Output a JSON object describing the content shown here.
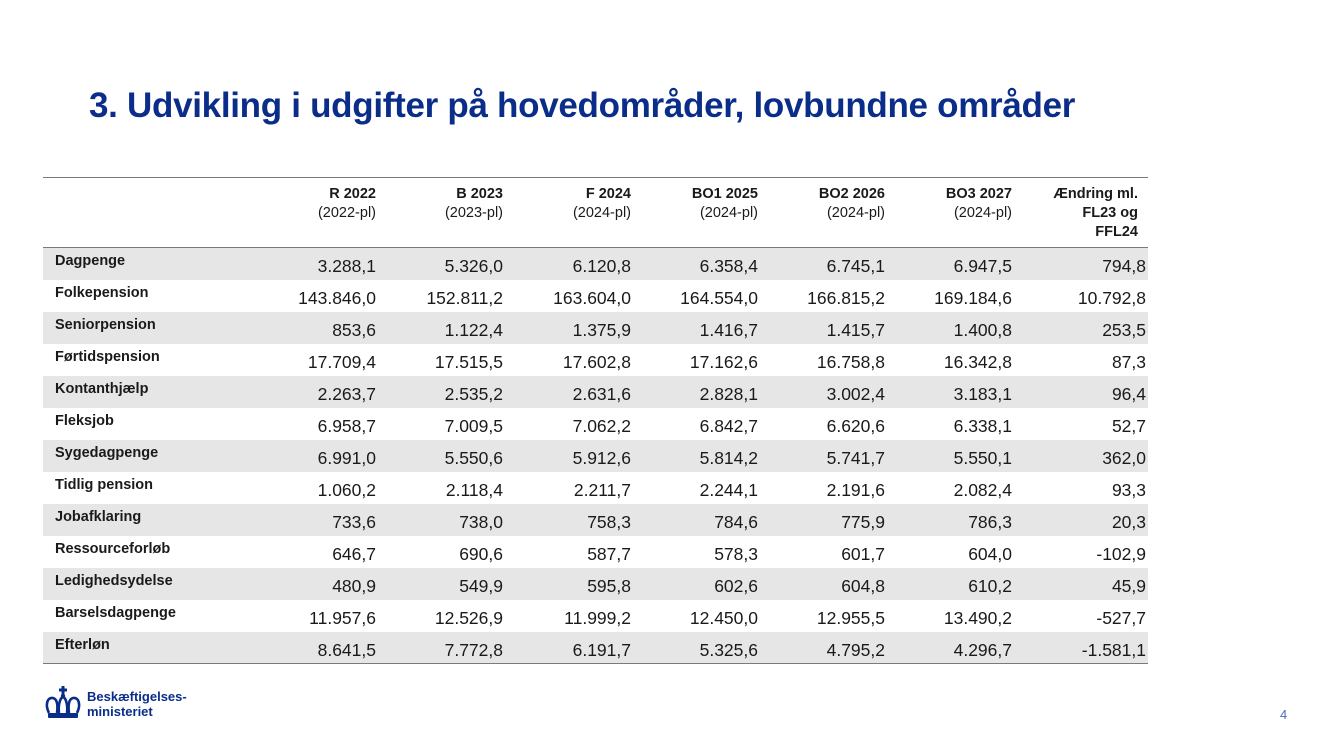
{
  "title": "3. Udvikling i udgifter på hovedområder, lovbundne områder",
  "table": {
    "columns": [
      {
        "line1": "R 2022",
        "line2": "(2022-pl)"
      },
      {
        "line1": "B 2023",
        "line2": "(2023-pl)"
      },
      {
        "line1": "F 2024",
        "line2": "(2024-pl)"
      },
      {
        "line1": "BO1 2025",
        "line2": "(2024-pl)"
      },
      {
        "line1": "BO2 2026",
        "line2": "(2024-pl)"
      },
      {
        "line1": "BO3 2027",
        "line2": "(2024-pl)"
      },
      {
        "line1": "Ændring ml.",
        "line2": "FL23 og",
        "line3": "FFL24"
      }
    ],
    "rows": [
      {
        "label": "Dagpenge",
        "values": [
          "3.288,1",
          "5.326,0",
          "6.120,8",
          "6.358,4",
          "6.745,1",
          "6.947,5",
          "794,8"
        ]
      },
      {
        "label": "Folkepension",
        "values": [
          "143.846,0",
          "152.811,2",
          "163.604,0",
          "164.554,0",
          "166.815,2",
          "169.184,6",
          "10.792,8"
        ]
      },
      {
        "label": "Seniorpension",
        "values": [
          "853,6",
          "1.122,4",
          "1.375,9",
          "1.416,7",
          "1.415,7",
          "1.400,8",
          "253,5"
        ]
      },
      {
        "label": "Førtidspension",
        "values": [
          "17.709,4",
          "17.515,5",
          "17.602,8",
          "17.162,6",
          "16.758,8",
          "16.342,8",
          "87,3"
        ]
      },
      {
        "label": "Kontanthjælp",
        "values": [
          "2.263,7",
          "2.535,2",
          "2.631,6",
          "2.828,1",
          "3.002,4",
          "3.183,1",
          "96,4"
        ]
      },
      {
        "label": "Fleksjob",
        "values": [
          "6.958,7",
          "7.009,5",
          "7.062,2",
          "6.842,7",
          "6.620,6",
          "6.338,1",
          "52,7"
        ]
      },
      {
        "label": "Sygedagpenge",
        "values": [
          "6.991,0",
          "5.550,6",
          "5.912,6",
          "5.814,2",
          "5.741,7",
          "5.550,1",
          "362,0"
        ]
      },
      {
        "label": "Tidlig pension",
        "values": [
          "1.060,2",
          "2.118,4",
          "2.211,7",
          "2.244,1",
          "2.191,6",
          "2.082,4",
          "93,3"
        ]
      },
      {
        "label": "Jobafklaring",
        "values": [
          "733,6",
          "738,0",
          "758,3",
          "784,6",
          "775,9",
          "786,3",
          "20,3"
        ]
      },
      {
        "label": "Ressourceforløb",
        "values": [
          "646,7",
          "690,6",
          "587,7",
          "578,3",
          "601,7",
          "604,0",
          "-102,9"
        ]
      },
      {
        "label": "Ledighedsydelse",
        "values": [
          "480,9",
          "549,9",
          "595,8",
          "602,6",
          "604,8",
          "610,2",
          "45,9"
        ]
      },
      {
        "label": "Barselsdagpenge",
        "values": [
          "11.957,6",
          "12.526,9",
          "11.999,2",
          "12.450,0",
          "12.955,5",
          "13.490,2",
          "-527,7"
        ]
      },
      {
        "label": "Efterløn",
        "values": [
          "8.641,5",
          "7.772,8",
          "6.191,7",
          "5.325,6",
          "4.795,2",
          "4.296,7",
          "-1.581,1"
        ]
      }
    ]
  },
  "logo": {
    "line1": "Beskæftigelses-",
    "line2": "ministeriet",
    "icon": "crown-icon",
    "color": "#0b2d8a"
  },
  "page_number": "4",
  "colors": {
    "title": "#0b2d8a",
    "row_shade": "#e6e6e6",
    "page_number": "#4a6bc4"
  }
}
